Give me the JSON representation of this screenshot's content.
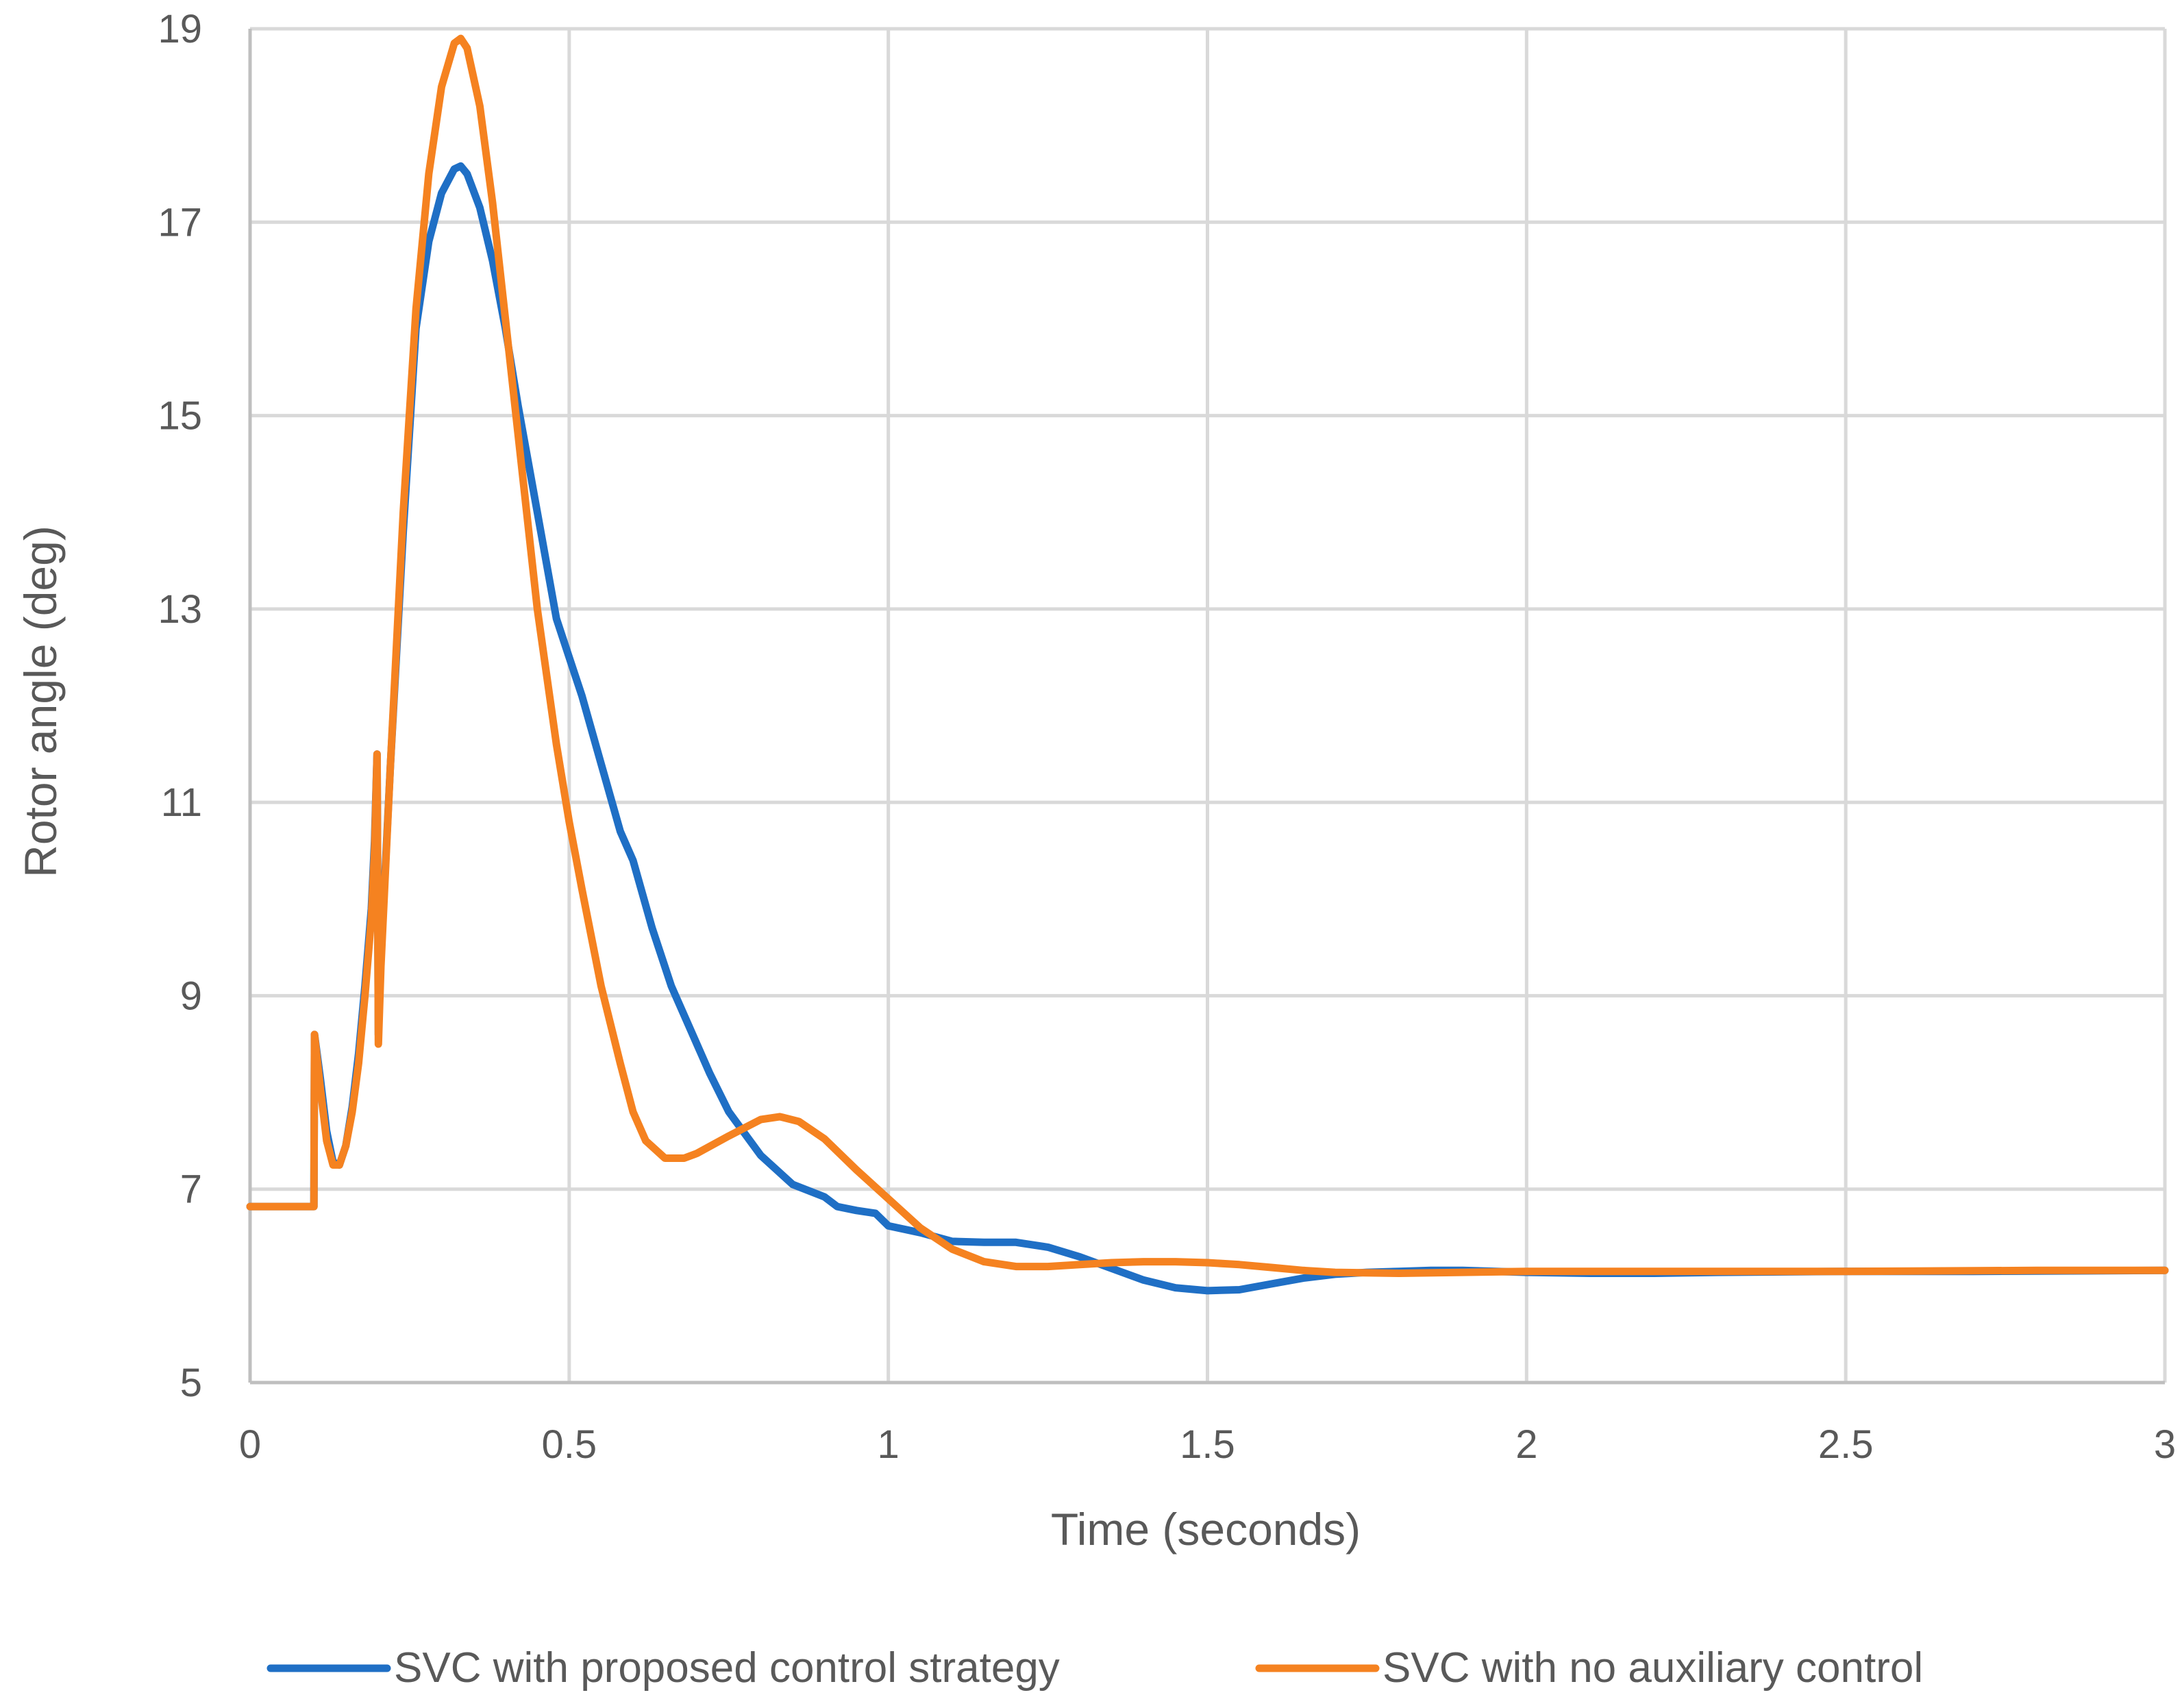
{
  "chart_data": {
    "type": "line",
    "title": "",
    "xlabel": "Time (seconds)",
    "ylabel": "Rotor angle (deg)",
    "xlim": [
      0,
      3
    ],
    "ylim": [
      5,
      19
    ],
    "x_ticks": [
      "0",
      "0.5",
      "1",
      "1.5",
      "2",
      "2.5",
      "3"
    ],
    "y_ticks": [
      "5",
      "7",
      "9",
      "11",
      "13",
      "15",
      "17",
      "19"
    ],
    "grid": true,
    "legend_position": "bottom",
    "series": [
      {
        "name": "SVC with proposed control strategy",
        "color": "#1f6fc5",
        "points": [
          [
            0,
            6.82
          ],
          [
            0.1,
            6.82
          ],
          [
            0.101,
            8.6
          ],
          [
            0.11,
            8.15
          ],
          [
            0.12,
            7.6
          ],
          [
            0.13,
            7.28
          ],
          [
            0.14,
            7.25
          ],
          [
            0.15,
            7.45
          ],
          [
            0.16,
            7.85
          ],
          [
            0.17,
            8.4
          ],
          [
            0.18,
            9.1
          ],
          [
            0.19,
            9.9
          ],
          [
            0.195,
            10.6
          ],
          [
            0.199,
            11.5
          ],
          [
            0.201,
            8.6
          ],
          [
            0.205,
            9.4
          ],
          [
            0.22,
            11.4
          ],
          [
            0.24,
            13.8
          ],
          [
            0.26,
            15.9
          ],
          [
            0.28,
            16.8
          ],
          [
            0.3,
            17.3
          ],
          [
            0.32,
            17.55
          ],
          [
            0.33,
            17.58
          ],
          [
            0.34,
            17.5
          ],
          [
            0.36,
            17.15
          ],
          [
            0.38,
            16.6
          ],
          [
            0.4,
            15.9
          ],
          [
            0.42,
            15.1
          ],
          [
            0.45,
            14.0
          ],
          [
            0.48,
            12.9
          ],
          [
            0.5,
            12.5
          ],
          [
            0.52,
            12.1
          ],
          [
            0.55,
            11.4
          ],
          [
            0.58,
            10.7
          ],
          [
            0.6,
            10.4
          ],
          [
            0.63,
            9.7
          ],
          [
            0.66,
            9.1
          ],
          [
            0.7,
            8.5
          ],
          [
            0.72,
            8.2
          ],
          [
            0.75,
            7.8
          ],
          [
            0.8,
            7.35
          ],
          [
            0.85,
            7.05
          ],
          [
            0.9,
            6.92
          ],
          [
            0.92,
            6.82
          ],
          [
            0.95,
            6.78
          ],
          [
            0.98,
            6.75
          ],
          [
            1.0,
            6.62
          ],
          [
            1.05,
            6.55
          ],
          [
            1.1,
            6.46
          ],
          [
            1.15,
            6.45
          ],
          [
            1.2,
            6.45
          ],
          [
            1.25,
            6.4
          ],
          [
            1.3,
            6.3
          ],
          [
            1.35,
            6.18
          ],
          [
            1.4,
            6.06
          ],
          [
            1.45,
            5.98
          ],
          [
            1.5,
            5.95
          ],
          [
            1.55,
            5.96
          ],
          [
            1.6,
            6.02
          ],
          [
            1.65,
            6.08
          ],
          [
            1.7,
            6.12
          ],
          [
            1.75,
            6.14
          ],
          [
            1.8,
            6.15
          ],
          [
            1.85,
            6.16
          ],
          [
            1.9,
            6.16
          ],
          [
            2.0,
            6.14
          ],
          [
            2.1,
            6.13
          ],
          [
            2.2,
            6.13
          ],
          [
            2.3,
            6.14
          ],
          [
            2.5,
            6.15
          ],
          [
            2.7,
            6.15
          ],
          [
            3.0,
            6.16
          ]
        ]
      },
      {
        "name": "SVC with no auxiliary control",
        "color": "#f58220",
        "points": [
          [
            0,
            6.82
          ],
          [
            0.1,
            6.82
          ],
          [
            0.101,
            8.6
          ],
          [
            0.11,
            8.05
          ],
          [
            0.12,
            7.5
          ],
          [
            0.13,
            7.25
          ],
          [
            0.14,
            7.25
          ],
          [
            0.15,
            7.45
          ],
          [
            0.16,
            7.8
          ],
          [
            0.17,
            8.3
          ],
          [
            0.18,
            9.0
          ],
          [
            0.19,
            9.8
          ],
          [
            0.195,
            10.5
          ],
          [
            0.199,
            11.5
          ],
          [
            0.201,
            8.5
          ],
          [
            0.205,
            9.3
          ],
          [
            0.22,
            11.4
          ],
          [
            0.24,
            14.0
          ],
          [
            0.26,
            16.1
          ],
          [
            0.28,
            17.5
          ],
          [
            0.3,
            18.4
          ],
          [
            0.32,
            18.85
          ],
          [
            0.33,
            18.9
          ],
          [
            0.34,
            18.8
          ],
          [
            0.36,
            18.2
          ],
          [
            0.38,
            17.2
          ],
          [
            0.4,
            16.0
          ],
          [
            0.42,
            14.8
          ],
          [
            0.45,
            13.0
          ],
          [
            0.48,
            11.6
          ],
          [
            0.5,
            10.8
          ],
          [
            0.52,
            10.1
          ],
          [
            0.55,
            9.1
          ],
          [
            0.58,
            8.3
          ],
          [
            0.6,
            7.8
          ],
          [
            0.62,
            7.5
          ],
          [
            0.65,
            7.32
          ],
          [
            0.68,
            7.32
          ],
          [
            0.7,
            7.37
          ],
          [
            0.75,
            7.55
          ],
          [
            0.8,
            7.72
          ],
          [
            0.83,
            7.75
          ],
          [
            0.86,
            7.7
          ],
          [
            0.9,
            7.52
          ],
          [
            0.95,
            7.2
          ],
          [
            1.0,
            6.9
          ],
          [
            1.05,
            6.6
          ],
          [
            1.1,
            6.38
          ],
          [
            1.15,
            6.25
          ],
          [
            1.2,
            6.2
          ],
          [
            1.25,
            6.2
          ],
          [
            1.3,
            6.22
          ],
          [
            1.35,
            6.24
          ],
          [
            1.4,
            6.25
          ],
          [
            1.45,
            6.25
          ],
          [
            1.5,
            6.24
          ],
          [
            1.55,
            6.22
          ],
          [
            1.6,
            6.19
          ],
          [
            1.65,
            6.16
          ],
          [
            1.7,
            6.14
          ],
          [
            1.8,
            6.13
          ],
          [
            1.9,
            6.14
          ],
          [
            2.0,
            6.15
          ],
          [
            2.2,
            6.15
          ],
          [
            2.5,
            6.15
          ],
          [
            2.8,
            6.16
          ],
          [
            3.0,
            6.16
          ]
        ]
      }
    ]
  }
}
